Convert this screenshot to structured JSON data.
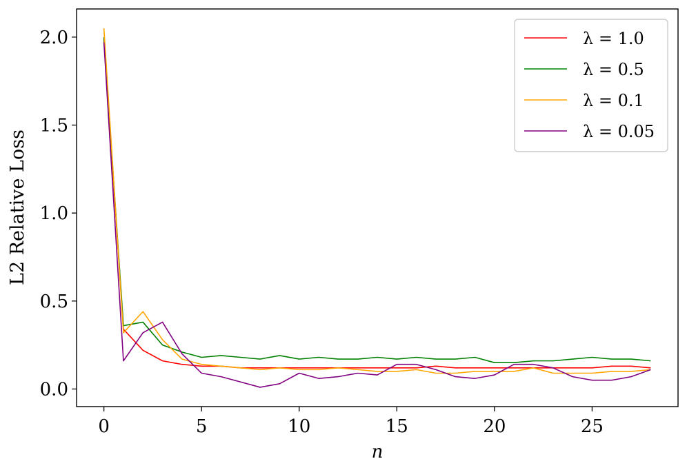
{
  "chart_data": {
    "type": "line",
    "xlabel": "n",
    "ylabel": "L2 Relative Loss",
    "xlim": [
      -1.4,
      29.4
    ],
    "ylim": [
      -0.1,
      2.16
    ],
    "xticks": [
      0,
      5,
      10,
      15,
      20,
      25
    ],
    "yticks": [
      0.0,
      0.5,
      1.0,
      1.5,
      2.0
    ],
    "ytick_labels": [
      "0.0",
      "0.5",
      "1.0",
      "1.5",
      "2.0"
    ],
    "grid": false,
    "legend_position": "top-right",
    "x": [
      0,
      1,
      2,
      3,
      4,
      5,
      6,
      7,
      8,
      9,
      10,
      11,
      12,
      13,
      14,
      15,
      16,
      17,
      18,
      19,
      20,
      21,
      22,
      23,
      24,
      25,
      26,
      27,
      28
    ],
    "series": [
      {
        "name": "λ = 1.0",
        "color": "#ff0000",
        "values": [
          1.99,
          0.34,
          0.22,
          0.16,
          0.14,
          0.13,
          0.13,
          0.12,
          0.12,
          0.12,
          0.12,
          0.12,
          0.12,
          0.12,
          0.12,
          0.12,
          0.12,
          0.13,
          0.12,
          0.12,
          0.12,
          0.12,
          0.12,
          0.12,
          0.12,
          0.12,
          0.13,
          0.13,
          0.12
        ]
      },
      {
        "name": "λ = 0.5",
        "color": "#008000",
        "values": [
          2.0,
          0.36,
          0.38,
          0.25,
          0.21,
          0.18,
          0.19,
          0.18,
          0.17,
          0.19,
          0.17,
          0.18,
          0.17,
          0.17,
          0.18,
          0.17,
          0.18,
          0.17,
          0.17,
          0.18,
          0.15,
          0.15,
          0.16,
          0.16,
          0.17,
          0.18,
          0.17,
          0.17,
          0.16
        ]
      },
      {
        "name": "λ = 0.1",
        "color": "#ffa500",
        "values": [
          2.05,
          0.32,
          0.44,
          0.28,
          0.17,
          0.14,
          0.13,
          0.12,
          0.11,
          0.12,
          0.11,
          0.11,
          0.12,
          0.11,
          0.1,
          0.1,
          0.11,
          0.09,
          0.09,
          0.1,
          0.1,
          0.1,
          0.12,
          0.09,
          0.09,
          0.09,
          0.1,
          0.1,
          0.11
        ]
      },
      {
        "name": "λ = 0.05",
        "color": "#800080",
        "values": [
          1.97,
          0.16,
          0.32,
          0.38,
          0.2,
          0.09,
          0.07,
          0.04,
          0.01,
          0.03,
          0.09,
          0.06,
          0.07,
          0.09,
          0.08,
          0.14,
          0.14,
          0.11,
          0.07,
          0.06,
          0.08,
          0.14,
          0.14,
          0.12,
          0.07,
          0.05,
          0.05,
          0.07,
          0.11
        ]
      }
    ]
  }
}
